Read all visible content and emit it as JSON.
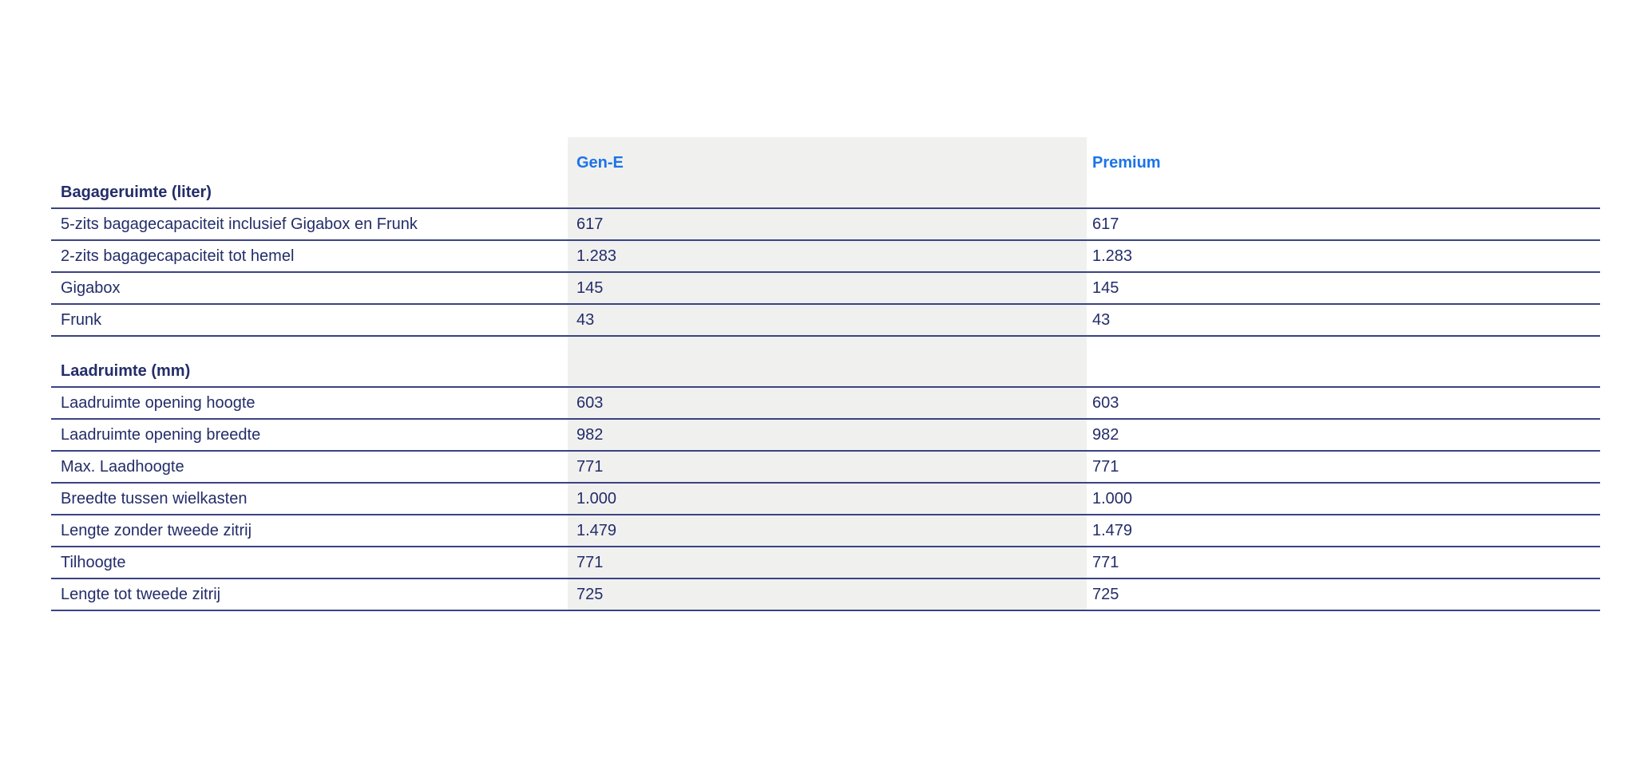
{
  "colors": {
    "navy": "#232d69",
    "line": "#3a4383",
    "accent": "#1b74e8",
    "colbg": "#f0f0ef",
    "page": "#ffffff"
  },
  "table": {
    "columns": [
      {
        "label": "Gen-E"
      },
      {
        "label": "Premium"
      }
    ],
    "sections": [
      {
        "title": "Bagageruimte (liter)",
        "rows": [
          {
            "label": "5-zits bagagecapaciteit inclusief Gigabox en Frunk",
            "values": [
              "617",
              "617"
            ]
          },
          {
            "label": "2-zits bagagecapaciteit tot hemel",
            "values": [
              "1.283",
              "1.283"
            ]
          },
          {
            "label": "Gigabox",
            "values": [
              "145",
              "145"
            ]
          },
          {
            "label": "Frunk",
            "values": [
              "43",
              "43"
            ]
          }
        ]
      },
      {
        "title": "Laadruimte (mm)",
        "rows": [
          {
            "label": "Laadruimte opening hoogte",
            "values": [
              "603",
              "603"
            ]
          },
          {
            "label": "Laadruimte opening breedte",
            "values": [
              "982",
              "982"
            ]
          },
          {
            "label": "Max. Laadhoogte",
            "values": [
              "771",
              "771"
            ]
          },
          {
            "label": "Breedte tussen wielkasten",
            "values": [
              "1.000",
              "1.000"
            ]
          },
          {
            "label": "Lengte zonder tweede zitrij",
            "values": [
              "1.479",
              "1.479"
            ]
          },
          {
            "label": "Tilhoogte",
            "values": [
              "771",
              "771"
            ]
          },
          {
            "label": "Lengte tot tweede zitrij",
            "values": [
              "725",
              "725"
            ]
          }
        ]
      }
    ]
  }
}
